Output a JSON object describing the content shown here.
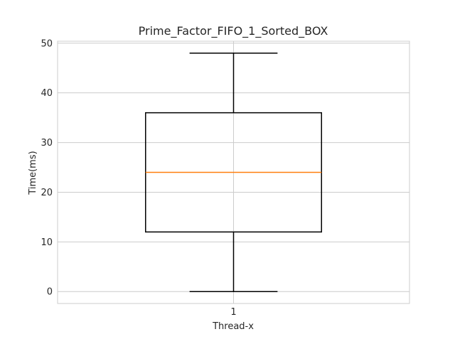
{
  "chart_data": {
    "type": "box",
    "title": "Prime_Factor_FIFO_1_Sorted_BOX",
    "xlabel": "Thread-x",
    "ylabel": "Time(ms)",
    "categories": [
      "1"
    ],
    "series": [
      {
        "whisker_low": 0,
        "q1": 12,
        "median": 24,
        "q3": 36,
        "whisker_high": 48
      }
    ],
    "ylim": [
      -2.4,
      50.4
    ],
    "xlim": [
      0.5,
      1.5
    ],
    "yticks": [
      0,
      10,
      20,
      30,
      40,
      50
    ],
    "yticklabels": [
      "0",
      "10",
      "20",
      "30",
      "40",
      "50"
    ],
    "grid": true,
    "colors": {
      "box": "#000000",
      "median": "#ff7f0e",
      "grid": "#cccccc",
      "frame": "#cccccc"
    }
  }
}
